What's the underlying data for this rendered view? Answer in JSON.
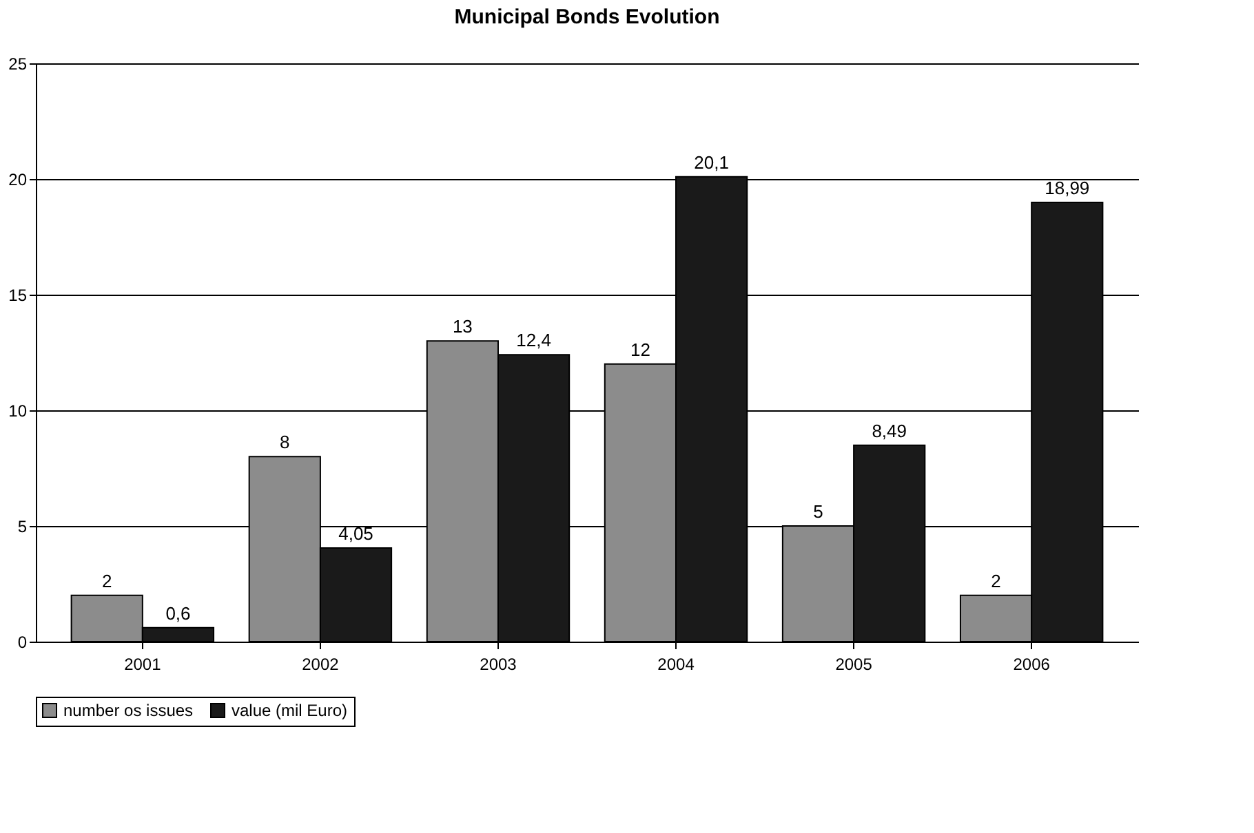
{
  "chart_data": {
    "type": "bar",
    "title": "Municipal Bonds Evolution",
    "categories": [
      "2001",
      "2002",
      "2003",
      "2004",
      "2005",
      "2006"
    ],
    "series": [
      {
        "name": "number os issues",
        "color": "#8c8c8c",
        "values": [
          2,
          8,
          13,
          12,
          5,
          2
        ],
        "value_labels": [
          "2",
          "8",
          "13",
          "12",
          "5",
          "2"
        ]
      },
      {
        "name": "value (mil Euro)",
        "color": "#1a1a1a",
        "values": [
          0.6,
          4.05,
          12.4,
          20.1,
          8.49,
          18.99
        ],
        "value_labels": [
          "0,6",
          "4,05",
          "12,4",
          "20,1",
          "8,49",
          "18,99"
        ]
      }
    ],
    "ylim": [
      0,
      25
    ],
    "yticks": [
      0,
      5,
      10,
      15,
      20,
      25
    ],
    "grid": "y",
    "legend": "bottom"
  }
}
